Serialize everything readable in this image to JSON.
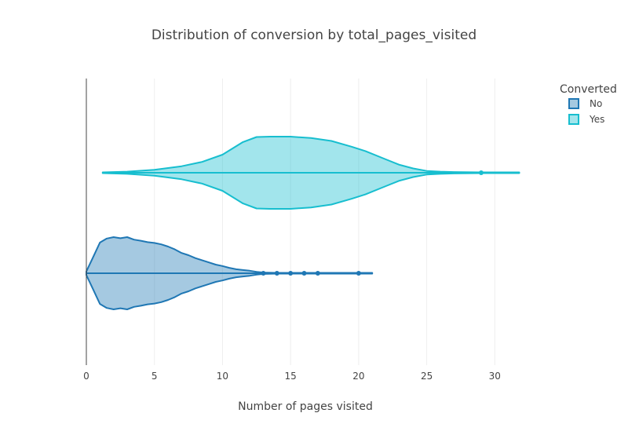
{
  "chart_data": {
    "type": "violin",
    "orientation": "horizontal",
    "title": "Distribution of conversion by total_pages_visited",
    "xlabel": "Number of pages visited",
    "ylabel": "",
    "xlim": [
      0,
      32
    ],
    "x_ticks": [
      0,
      5,
      10,
      15,
      20,
      25,
      30
    ],
    "grid": true,
    "legend": {
      "title": "Converted",
      "placement": "top-right"
    },
    "series": [
      {
        "name": "No",
        "color": "#1f77b4",
        "range": [
          0,
          21
        ],
        "density": [
          [
            0,
            0.05
          ],
          [
            0.5,
            0.45
          ],
          [
            1,
            0.85
          ],
          [
            1.5,
            0.96
          ],
          [
            2,
            1.0
          ],
          [
            2.5,
            0.97
          ],
          [
            3,
            1.0
          ],
          [
            3.5,
            0.93
          ],
          [
            4,
            0.9
          ],
          [
            4.5,
            0.86
          ],
          [
            5,
            0.84
          ],
          [
            5.5,
            0.8
          ],
          [
            6,
            0.74
          ],
          [
            6.5,
            0.66
          ],
          [
            7,
            0.56
          ],
          [
            7.5,
            0.5
          ],
          [
            8,
            0.42
          ],
          [
            8.5,
            0.36
          ],
          [
            9,
            0.3
          ],
          [
            9.5,
            0.24
          ],
          [
            10,
            0.2
          ],
          [
            10.5,
            0.15
          ],
          [
            11,
            0.11
          ],
          [
            11.5,
            0.09
          ],
          [
            12,
            0.07
          ],
          [
            12.5,
            0.04
          ],
          [
            13,
            0.02
          ],
          [
            14,
            0.01
          ],
          [
            21,
            0.01
          ]
        ],
        "outliers": [
          13,
          14,
          15,
          16,
          17,
          20
        ]
      },
      {
        "name": "Yes",
        "color": "#17becf",
        "range": [
          1.2,
          31.8
        ],
        "density": [
          [
            1.2,
            0.01
          ],
          [
            3,
            0.03
          ],
          [
            5,
            0.08
          ],
          [
            7,
            0.18
          ],
          [
            8.5,
            0.3
          ],
          [
            10,
            0.5
          ],
          [
            11.5,
            0.85
          ],
          [
            12.5,
            0.99
          ],
          [
            13.5,
            1.0
          ],
          [
            15,
            1.0
          ],
          [
            16.5,
            0.96
          ],
          [
            18,
            0.88
          ],
          [
            19.5,
            0.72
          ],
          [
            20.5,
            0.6
          ],
          [
            22,
            0.37
          ],
          [
            23,
            0.22
          ],
          [
            24,
            0.12
          ],
          [
            25,
            0.05
          ],
          [
            26,
            0.03
          ],
          [
            27,
            0.02
          ],
          [
            29,
            0.01
          ],
          [
            31.8,
            0.01
          ]
        ],
        "outliers": [
          29
        ]
      }
    ]
  }
}
